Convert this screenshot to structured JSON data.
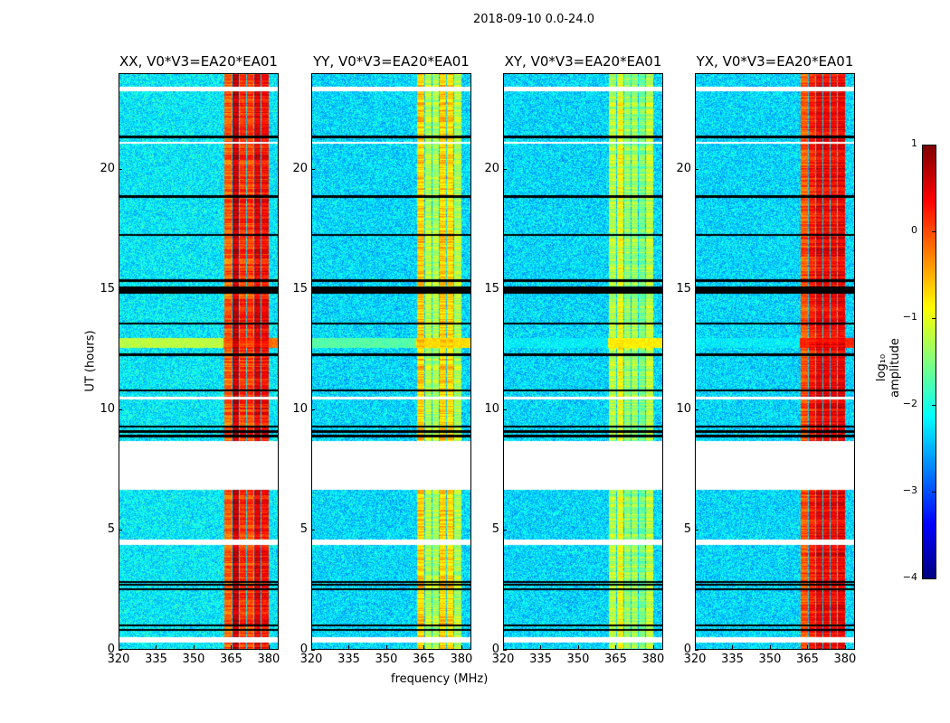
{
  "chart_data": {
    "type": "heatmap",
    "title": "2018-09-10 0.0-24.0",
    "xlabel": "frequency (MHz)",
    "ylabel": "UT (hours)",
    "xlim": [
      320,
      384
    ],
    "ylim": [
      0,
      24
    ],
    "xticks": [
      "320",
      "335",
      "350",
      "365",
      "380"
    ],
    "xtick_values": [
      320,
      335,
      350,
      365,
      380
    ],
    "yticks": [
      "0",
      "5",
      "10",
      "15",
      "20"
    ],
    "ytick_values": [
      0,
      5,
      10,
      15,
      20
    ],
    "panels": [
      {
        "title": "XX, V0*V3=EA20*EA01",
        "rfi_level": 0.2,
        "band_level": -0.2,
        "base": -2.2,
        "cont_level": -1.2
      },
      {
        "title": "YY, V0*V3=EA20*EA01",
        "rfi_level": -1.0,
        "band_level": -0.7,
        "base": -2.3,
        "cont_level": -1.7
      },
      {
        "title": "XY, V0*V3=EA20*EA01",
        "rfi_level": -1.4,
        "band_level": -0.8,
        "base": -2.3,
        "cont_level": -2.3
      },
      {
        "title": "YX, V0*V3=EA20*EA01",
        "rfi_level": 0.1,
        "band_level": 0.2,
        "base": -2.3,
        "cont_level": -2.3
      }
    ],
    "rfi_band_mhz": [
      362,
      380
    ],
    "interference_band_hours": [
      12.6,
      13.0
    ],
    "flagged_hours": [
      [
        0.3,
        0.5
      ],
      [
        4.35,
        4.6
      ],
      [
        6.65,
        8.7
      ],
      [
        10.45,
        10.55
      ],
      [
        23.3,
        23.5
      ],
      [
        21.1,
        21.2
      ]
    ],
    "black_lines_hours": [
      0.8,
      1.0,
      2.5,
      2.7,
      2.8,
      8.9,
      9.1,
      9.3,
      10.8,
      12.3,
      13.6,
      14.9,
      15.0,
      15.1,
      15.4,
      17.3,
      18.9,
      21.4
    ],
    "colorbar": {
      "label": "log₁₀ amplitude",
      "range": [
        -4,
        1
      ],
      "ticks": [
        "1",
        "0",
        "−1",
        "−2",
        "−3",
        "−4"
      ],
      "tick_values": [
        1,
        0,
        -1,
        -2,
        -3,
        -4
      ],
      "colormap": "jet"
    }
  }
}
